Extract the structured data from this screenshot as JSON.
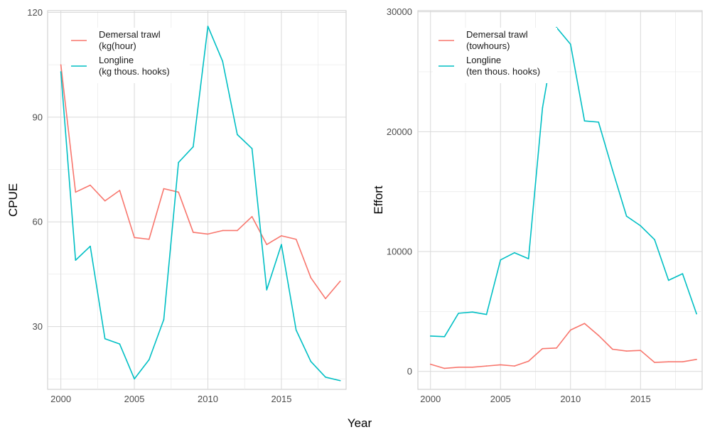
{
  "shared_xlabel": "Year",
  "colors": {
    "trawl": "#F8766D",
    "longline": "#00BFC4",
    "grid_major": "#d9d9d9",
    "grid_minor": "#ebebeb",
    "panel_border": "#c8c8c8"
  },
  "chart_data": [
    {
      "type": "line",
      "ylabel": "CPUE",
      "xlabel": "Year",
      "xlim": [
        1999.1,
        2019.4
      ],
      "ylim": [
        12,
        120.5
      ],
      "xticks": [
        2000,
        2005,
        2010,
        2015
      ],
      "yticks": [
        30,
        60,
        90,
        120
      ],
      "grid": true,
      "legend_position": "top-left",
      "x": [
        2000,
        2001,
        2002,
        2003,
        2004,
        2005,
        2006,
        2007,
        2008,
        2009,
        2010,
        2011,
        2012,
        2013,
        2014,
        2015,
        2016,
        2017,
        2018,
        2019
      ],
      "series": [
        {
          "name": "Demersal trawl\n(kg(hour)",
          "color_key": "trawl",
          "values": [
            105,
            68.5,
            70.5,
            66,
            69,
            55.5,
            55,
            69.5,
            68.5,
            57,
            56.5,
            57.5,
            57.5,
            61.5,
            53.5,
            56,
            55,
            44,
            38,
            43
          ]
        },
        {
          "name": "Longline\n(kg thous. hooks)",
          "color_key": "longline",
          "values": [
            103,
            49,
            53,
            26.5,
            25,
            15,
            20.5,
            32,
            77,
            81.5,
            116,
            106,
            85,
            81,
            40.5,
            53.5,
            29,
            20,
            15.5,
            14.5
          ]
        }
      ]
    },
    {
      "type": "line",
      "ylabel": "Effort",
      "xlabel": "Year",
      "xlim": [
        1999.1,
        2019.4
      ],
      "ylim": [
        -1500,
        30100
      ],
      "xticks": [
        2000,
        2005,
        2010,
        2015
      ],
      "yticks": [
        0,
        10000,
        20000,
        30000
      ],
      "grid": true,
      "legend_position": "top-left",
      "x": [
        2000,
        2001,
        2002,
        2003,
        2004,
        2005,
        2006,
        2007,
        2008,
        2009,
        2010,
        2011,
        2012,
        2013,
        2014,
        2015,
        2016,
        2017,
        2018,
        2019
      ],
      "series": [
        {
          "name": "Demersal trawl\n(towhours)",
          "color_key": "trawl",
          "values": [
            600,
            250,
            350,
            350,
            450,
            550,
            450,
            850,
            1900,
            1950,
            3450,
            4000,
            3000,
            1850,
            1700,
            1750,
            750,
            800,
            800,
            1000
          ]
        },
        {
          "name": "Longline\n(ten thous. hooks)",
          "color_key": "longline",
          "values": [
            2950,
            2900,
            4850,
            4950,
            4750,
            9300,
            9900,
            9400,
            22000,
            28700,
            27300,
            20900,
            20800,
            16800,
            12950,
            12150,
            11000,
            7600,
            8150,
            4800
          ]
        }
      ]
    }
  ]
}
